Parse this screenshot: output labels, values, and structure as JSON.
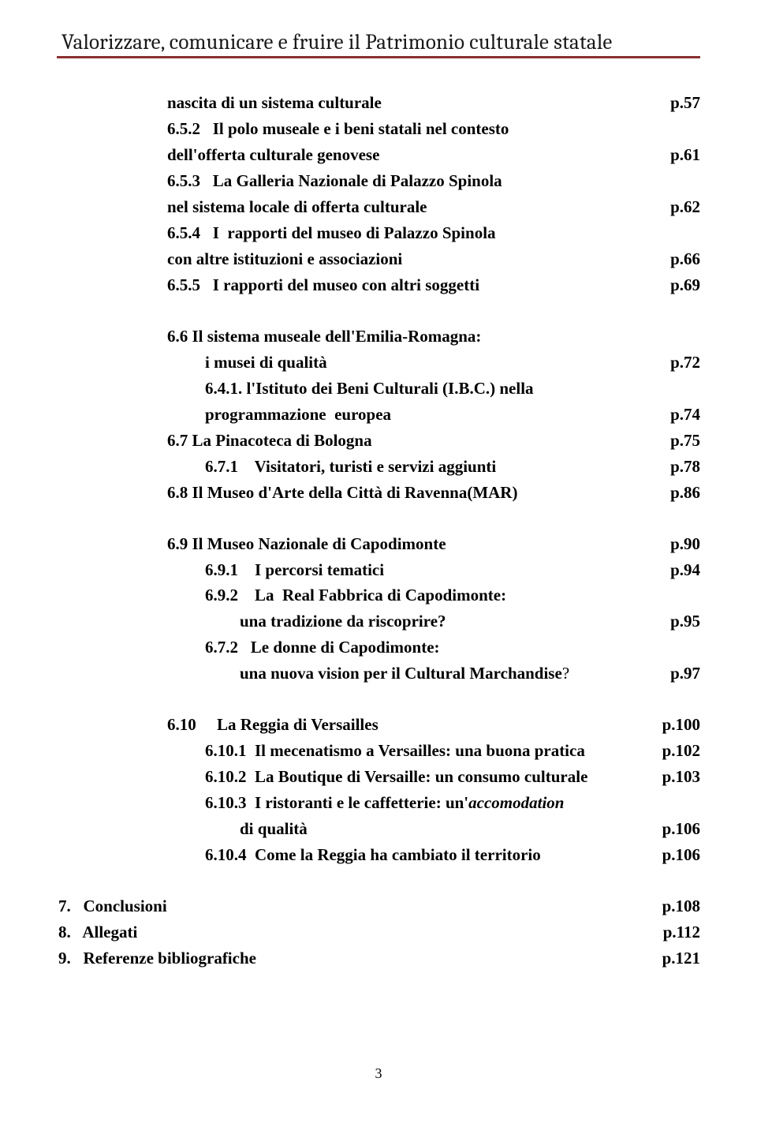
{
  "header": {
    "title": "Valorizzare, comunicare e fruire il Patrimonio culturale statale"
  },
  "toc": [
    {
      "indent": 1,
      "label": "nascita di un sistema culturale",
      "page": "p.57",
      "bold": true
    },
    {
      "indent": 1,
      "label": "6.5.2   Il polo museale e i beni statali nel contesto",
      "page": "",
      "bold": true
    },
    {
      "indent": 1,
      "label": "dell'offerta culturale genovese",
      "page": "p.61",
      "bold": true
    },
    {
      "indent": 1,
      "label": "6.5.3   La Galleria Nazionale di Palazzo Spinola",
      "page": "",
      "bold": true
    },
    {
      "indent": 1,
      "label": "nel sistema locale di offerta culturale",
      "page": "p.62",
      "bold": true
    },
    {
      "indent": 1,
      "label": "6.5.4   I  rapporti del museo di Palazzo Spinola",
      "page": "",
      "bold": true
    },
    {
      "indent": 1,
      "label": "con altre istituzioni e associazioni",
      "page": "p.66",
      "bold": true
    },
    {
      "indent": 1,
      "label": "6.5.5   I rapporti del museo con altri soggetti",
      "page": "p.69",
      "bold": true
    },
    {
      "spacer": true
    },
    {
      "indent": 1,
      "label": "6.6 Il sistema museale dell'Emilia-Romagna:",
      "page": "",
      "bold": true
    },
    {
      "indent": 2,
      "label": "i musei di qualità",
      "page": "p.72",
      "bold": true
    },
    {
      "indent": 2,
      "label": "6.4.1. l'Istituto dei Beni Culturali (I.B.C.) nella",
      "page": "",
      "bold": true
    },
    {
      "indent": 2,
      "label": "programmazione  europea",
      "page": "p.74",
      "bold": true
    },
    {
      "indent": 1,
      "label": "6.7 La Pinacoteca di Bologna",
      "page": "p.75",
      "bold": true
    },
    {
      "indent": 2,
      "label": "6.7.1    Visitatori, turisti e servizi aggiunti",
      "page": "p.78",
      "bold": true
    },
    {
      "indent": 1,
      "label": "6.8 Il Museo d'Arte della Città di Ravenna(MAR)",
      "page": "p.86",
      "bold": true
    },
    {
      "spacer": true
    },
    {
      "indent": 1,
      "label": "6.9 Il Museo Nazionale di Capodimonte",
      "page": "p.90",
      "bold": true
    },
    {
      "indent": 2,
      "label": "6.9.1    I percorsi tematici",
      "page": "p.94",
      "bold": true
    },
    {
      "indent": 2,
      "label": "6.9.2    La  Real Fabbrica di Capodimonte:",
      "page": "",
      "bold": true
    },
    {
      "indent": 3,
      "label": "una tradizione da riscoprire?",
      "page": "p.95",
      "bold": true
    },
    {
      "indent": 2,
      "label": "6.7.2   Le donne di Capodimonte:",
      "page": "",
      "bold": true
    },
    {
      "indent": 3,
      "label_html": "una nuova vision per il Cultural Marchandise<span style='font-weight:normal'>?</span>",
      "page": "p.97",
      "bold": true
    },
    {
      "spacer": true
    },
    {
      "indent": 1,
      "label": "6.10     La Reggia di Versailles",
      "page": "p.100",
      "bold": true
    },
    {
      "indent": 2,
      "label": "6.10.1  Il mecenatismo a Versailles: una buona pratica",
      "page": "p.102",
      "bold": true
    },
    {
      "indent": 2,
      "label": "6.10.2  La Boutique di Versaille: un consumo culturale",
      "page": "p.103",
      "bold": true
    },
    {
      "indent": 2,
      "label_html": "6.10.3  I ristoranti e le caffetterie: un'<span class='italic'>accomodation</span>",
      "page": "",
      "bold": true
    },
    {
      "indent": 3,
      "label": "di qualità",
      "page": "p.106",
      "bold": true
    },
    {
      "indent": 2,
      "label": "6.10.4  Come la Reggia ha cambiato il territorio",
      "page": "p.106",
      "bold": true
    },
    {
      "spacer": true
    },
    {
      "indent": 0,
      "label": "7.   Conclusioni",
      "page": "p.108",
      "bold": true
    },
    {
      "indent": 0,
      "label": "8.   Allegati",
      "page": "p.112",
      "bold": true
    },
    {
      "indent": 0,
      "label": "9.   Referenze bibliografiche",
      "page": "p.121",
      "bold": true
    }
  ],
  "pagenum": "3",
  "colors": {
    "rule": "#8b3030",
    "text": "#000000",
    "header_text": "#1a1a1a",
    "bg": "#ffffff"
  }
}
